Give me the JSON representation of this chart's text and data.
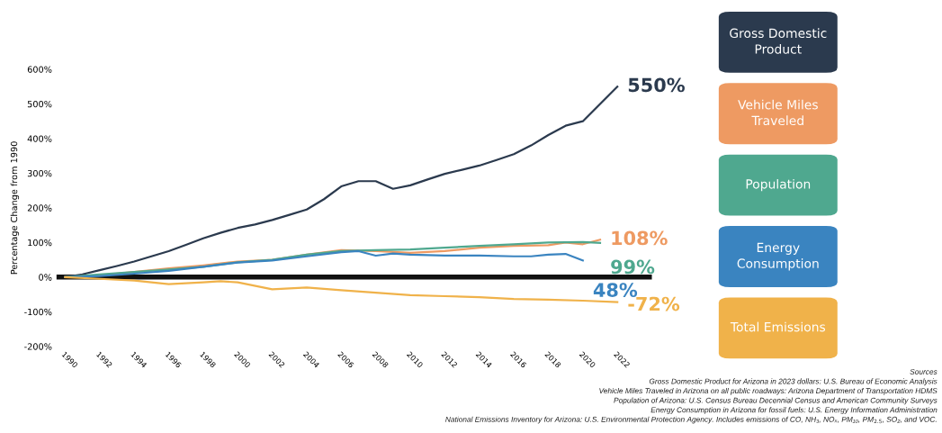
{
  "chart_data": {
    "type": "line",
    "ylabel": "Percentage Change from 1990",
    "xlim": [
      1989.5,
      2024
    ],
    "xticks": [
      1990,
      1992,
      1994,
      1996,
      1998,
      2000,
      2002,
      2004,
      2006,
      2008,
      2010,
      2012,
      2014,
      2016,
      2018,
      2020,
      2022
    ],
    "ylim": [
      -200,
      600
    ],
    "yticks": [
      {
        "value": -200,
        "label": "-200%"
      },
      {
        "value": -100,
        "label": "-100%"
      },
      {
        "value": 0,
        "label": "0%"
      },
      {
        "value": 100,
        "label": "100%"
      },
      {
        "value": 200,
        "label": "200%"
      },
      {
        "value": 300,
        "label": "300%"
      },
      {
        "value": 400,
        "label": "400%"
      },
      {
        "value": 500,
        "label": "500%"
      },
      {
        "value": 600,
        "label": "600%"
      }
    ],
    "grid": false,
    "legend": "right",
    "marker": "none",
    "line_style": "solid",
    "ref_lines": [
      {
        "axis": "y",
        "value": 0,
        "color": "#111111"
      }
    ],
    "series": [
      {
        "name": "Gross Domestic Product",
        "color": "#2b3a4e",
        "x": [
          1990,
          1991,
          1992,
          1993,
          1994,
          1995,
          1996,
          1997,
          1998,
          1999,
          2000,
          2001,
          2002,
          2003,
          2004,
          2005,
          2006,
          2007,
          2008,
          2009,
          2010,
          2011,
          2012,
          2013,
          2014,
          2015,
          2016,
          2017,
          2018,
          2019,
          2020,
          2021,
          2022
        ],
        "values": [
          0,
          8,
          20,
          32,
          45,
          60,
          75,
          93,
          112,
          128,
          142,
          152,
          165,
          180,
          195,
          225,
          262,
          277,
          277,
          255,
          265,
          282,
          298,
          310,
          322,
          338,
          355,
          380,
          410,
          437,
          450,
          500,
          550
        ],
        "value_labels": [
          null,
          null,
          null,
          null,
          null,
          null,
          null,
          null,
          null,
          null,
          null,
          null,
          null,
          null,
          null,
          null,
          null,
          null,
          null,
          null,
          null,
          null,
          null,
          null,
          null,
          null,
          null,
          null,
          null,
          null,
          null,
          null,
          "550%"
        ]
      },
      {
        "name": "Vehicle Miles Traveled",
        "color": "#ee9a62",
        "x": [
          1990,
          1992,
          1994,
          1996,
          1998,
          2000,
          2002,
          2004,
          2006,
          2008,
          2010,
          2012,
          2014,
          2016,
          2018,
          2019,
          2020,
          2021
        ],
        "values": [
          0,
          5,
          15,
          25,
          34,
          45,
          50,
          65,
          78,
          75,
          70,
          75,
          85,
          90,
          92,
          100,
          95,
          108
        ],
        "value_labels": [
          null,
          null,
          null,
          null,
          null,
          null,
          null,
          null,
          null,
          null,
          null,
          null,
          null,
          null,
          null,
          null,
          null,
          "108%"
        ]
      },
      {
        "name": "Population",
        "color": "#4fa88f",
        "x": [
          1990,
          1992,
          1994,
          1996,
          1998,
          2000,
          2002,
          2004,
          2006,
          2008,
          2010,
          2012,
          2014,
          2016,
          2018,
          2020,
          2021
        ],
        "values": [
          0,
          8,
          15,
          22,
          30,
          43,
          50,
          65,
          75,
          78,
          80,
          85,
          90,
          95,
          100,
          101,
          99
        ],
        "value_labels": [
          null,
          null,
          null,
          null,
          null,
          null,
          null,
          null,
          null,
          null,
          null,
          null,
          null,
          null,
          null,
          null,
          "99%"
        ]
      },
      {
        "name": "Energy Consumption",
        "color": "#3a84c0",
        "x": [
          1990,
          1992,
          1994,
          1996,
          1998,
          2000,
          2002,
          2004,
          2006,
          2007,
          2008,
          2009,
          2010,
          2012,
          2014,
          2016,
          2017,
          2018,
          2019,
          2020
        ],
        "values": [
          0,
          3,
          10,
          18,
          30,
          42,
          48,
          60,
          72,
          75,
          62,
          68,
          65,
          62,
          62,
          60,
          60,
          65,
          67,
          48
        ],
        "value_labels": [
          null,
          null,
          null,
          null,
          null,
          null,
          null,
          null,
          null,
          null,
          null,
          null,
          null,
          null,
          null,
          null,
          null,
          null,
          null,
          "48%"
        ]
      },
      {
        "name": "Total Emissions",
        "color": "#f0b24a",
        "x": [
          1990,
          1992,
          1994,
          1996,
          1998,
          1999,
          2000,
          2002,
          2004,
          2006,
          2008,
          2010,
          2012,
          2014,
          2016,
          2018,
          2020,
          2022
        ],
        "values": [
          0,
          -5,
          -10,
          -20,
          -15,
          -12,
          -15,
          -35,
          -30,
          -38,
          -45,
          -52,
          -55,
          -58,
          -63,
          -65,
          -68,
          -72
        ],
        "value_labels": [
          null,
          null,
          null,
          null,
          null,
          null,
          null,
          null,
          null,
          null,
          null,
          null,
          null,
          null,
          null,
          null,
          null,
          "-72%"
        ]
      }
    ],
    "annotations": [
      "Sources",
      "Gross Domestic Product for Arizona in 2023 dollars: U.S. Bureau of Economic Analysis",
      "Vehicle Miles Traveled in Arizona on all public roadways: Arizona Department of Transportation HDMS",
      "Population of Arizona: U.S. Census Bureau Decennial Census and American Community Surveys",
      "Energy Consumption in Arizona for fossil fuels: U.S. Energy Information Administration",
      "National Emissions Inventory for Arizona: U.S. Environmental Protection Agency. Includes emissions of CO, NH₃, NOₓ, PM₁₀, PM$_{2.5}$, SO₂, and VOC."
    ]
  }
}
